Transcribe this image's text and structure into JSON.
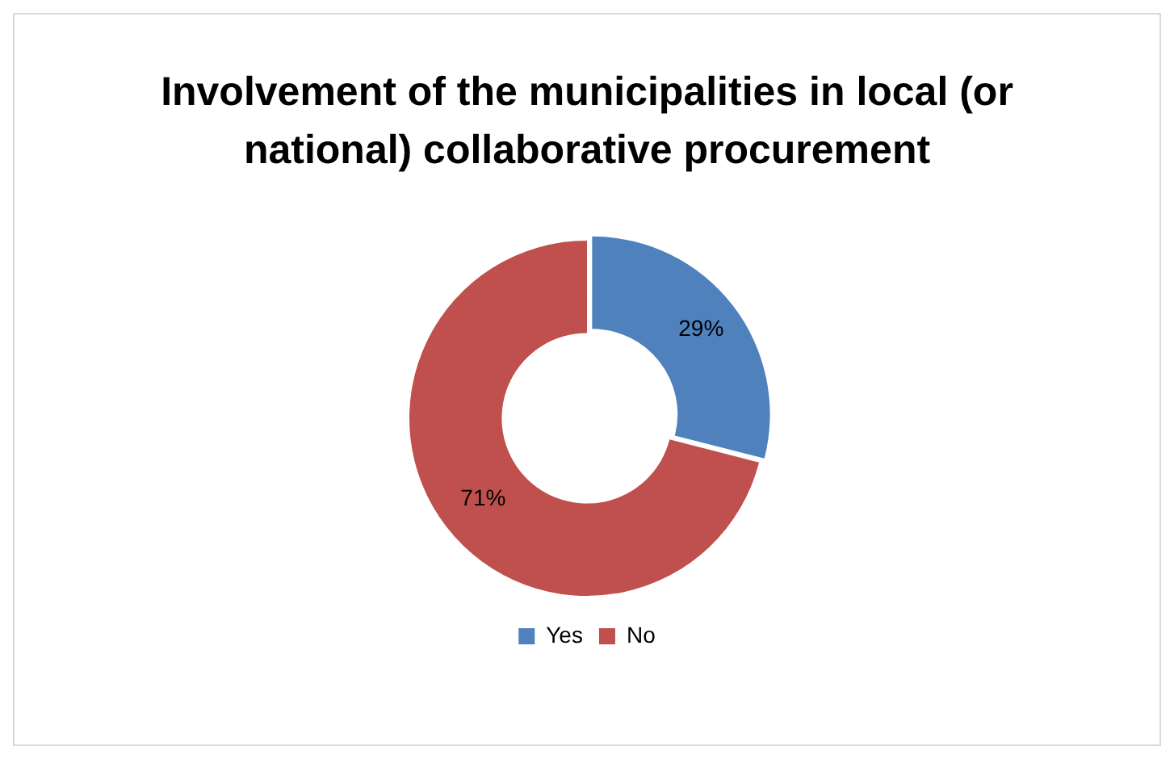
{
  "chart_data": {
    "type": "donut",
    "title": "Involvement of the municipalities in local (or national) collaborative procurement",
    "categories": [
      "Yes",
      "No"
    ],
    "values": [
      29,
      71
    ],
    "colors": [
      "#4f81bd",
      "#c0504d"
    ],
    "value_labels": [
      "29%",
      "71%"
    ],
    "legend": "bottom"
  }
}
